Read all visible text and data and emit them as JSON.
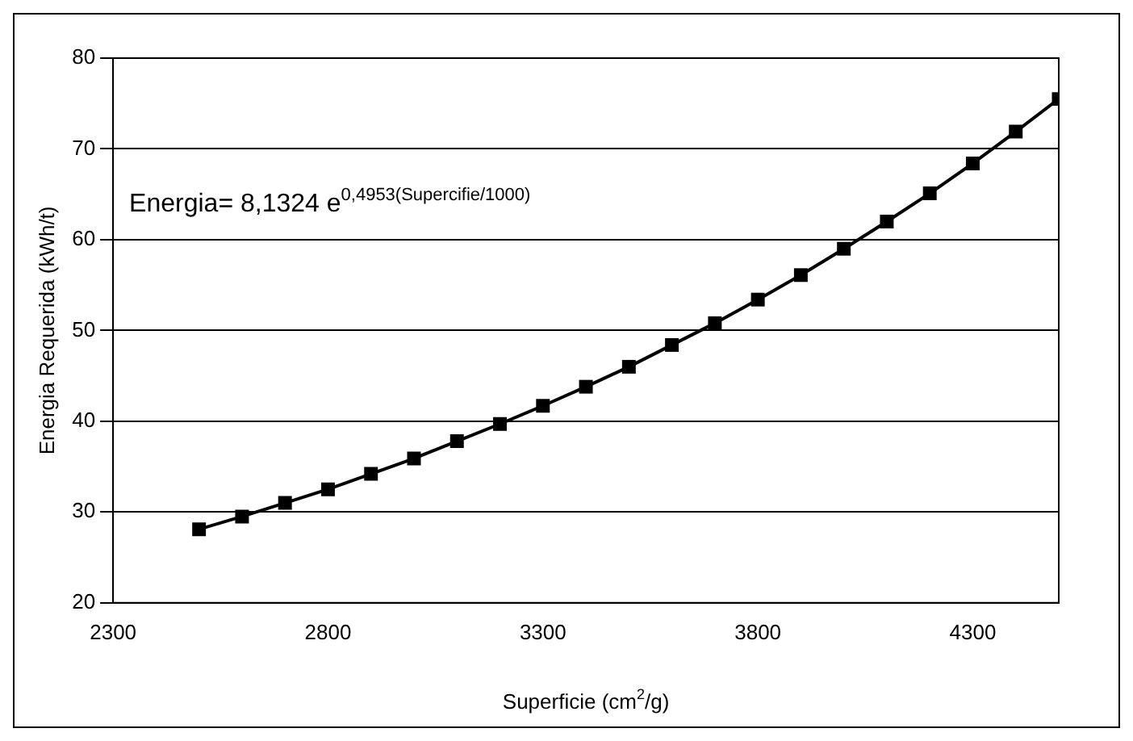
{
  "chart_data": {
    "type": "line",
    "xlabel": "Superficie (cm$^{2}$/g)",
    "ylabel": "Energia Requerida (kWh/t)",
    "annotations": [
      "Energia= 8,1324 e$^{0,4953(Supercifie/1000)}$"
    ],
    "x": [
      2500,
      2600,
      2700,
      2800,
      2900,
      3000,
      3100,
      3200,
      3300,
      3400,
      3500,
      3600,
      3700,
      3800,
      3900,
      4000,
      4100,
      4200,
      4300,
      4400,
      4500
    ],
    "series": [
      {
        "color": "#000000",
        "values": [
          28.1,
          29.5,
          31.0,
          32.5,
          34.2,
          35.9,
          37.8,
          39.7,
          41.7,
          43.8,
          46.0,
          48.4,
          50.8,
          53.4,
          56.1,
          59.0,
          62.0,
          65.1,
          68.4,
          71.9,
          75.5
        ]
      }
    ],
    "xlim": [
      2300,
      4500
    ],
    "xticks": [
      2300,
      2800,
      3300,
      3800,
      4300
    ],
    "ylim": [
      20,
      80
    ],
    "yticks": [
      20,
      30,
      40,
      50,
      60,
      70,
      80
    ],
    "grid": "y",
    "legend": false,
    "marker": "square",
    "line_style": "solid"
  }
}
